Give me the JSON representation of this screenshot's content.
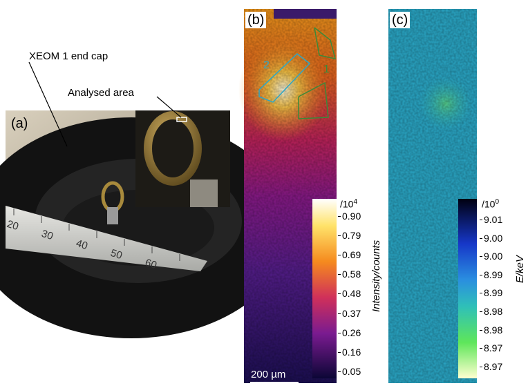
{
  "panel_a": {
    "label": "(a)",
    "annotations": [
      "XEOM 1 end cap",
      "Analysed area"
    ],
    "ruler_labels": [
      "20",
      "30",
      "40",
      "50",
      "60"
    ]
  },
  "panel_b": {
    "label": "(b)",
    "regions": [
      "2",
      "1"
    ],
    "scale_bar": "200 µm",
    "colorbar": {
      "multiplier": "/10",
      "exponent": "4",
      "title": "Intensity/counts",
      "ticks": [
        "0.90",
        "0.79",
        "0.69",
        "0.58",
        "0.48",
        "0.37",
        "0.26",
        "0.16",
        "0.05"
      ]
    }
  },
  "panel_c": {
    "label": "(c)",
    "colorbar": {
      "multiplier": "/10",
      "exponent": "0",
      "title": "E/keV",
      "ticks": [
        "9.01",
        "9.00",
        "9.00",
        "8.99",
        "8.99",
        "8.98",
        "8.98",
        "8.97",
        "8.97"
      ]
    }
  }
}
